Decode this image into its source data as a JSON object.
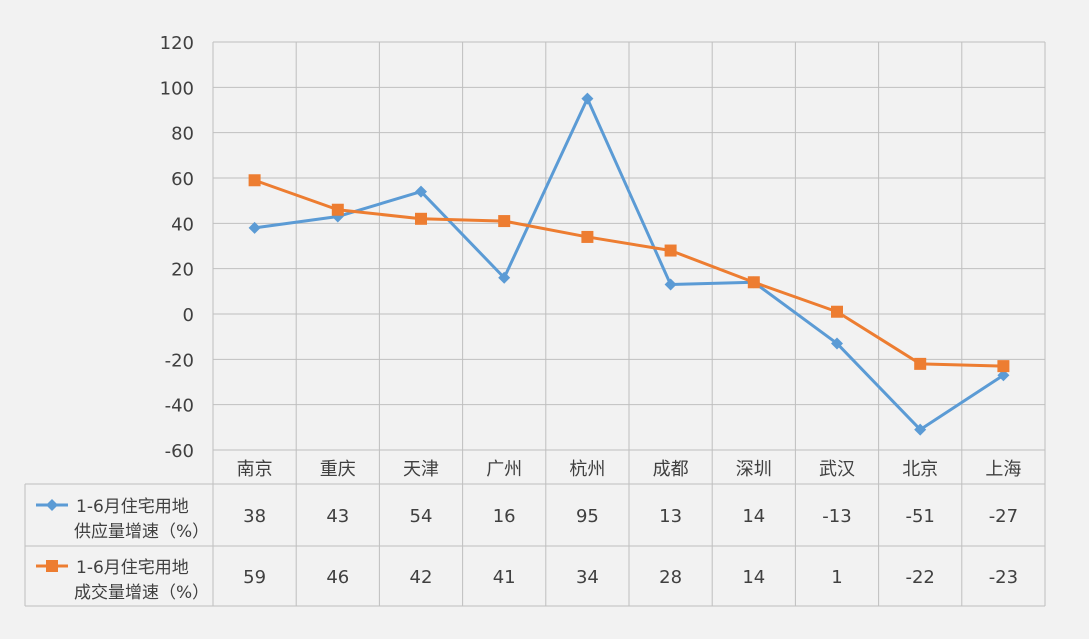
{
  "chart_data": {
    "type": "line",
    "categories": [
      "南京",
      "重庆",
      "天津",
      "广州",
      "杭州",
      "成都",
      "深圳",
      "武汉",
      "北京",
      "上海"
    ],
    "series": [
      {
        "name_lines": [
          "1-6月住宅用地",
          "供应量增速（%）"
        ],
        "color": "#5b9bd5",
        "marker": "diamond",
        "values": [
          38,
          43,
          54,
          16,
          95,
          13,
          14,
          -13,
          -51,
          -27
        ],
        "value_labels": [
          "38",
          "43",
          "54",
          "16",
          "95",
          "13",
          "14",
          "-13",
          "-51",
          "-27"
        ]
      },
      {
        "name_lines": [
          "1-6月住宅用地",
          "成交量增速（%）"
        ],
        "color": "#ed7d31",
        "marker": "square",
        "values": [
          59,
          46,
          42,
          41,
          34,
          28,
          14,
          1,
          -22,
          -23
        ],
        "value_labels": [
          "59",
          "46",
          "42",
          "41",
          "34",
          "28",
          "14",
          "1",
          "-22",
          "-23"
        ]
      }
    ],
    "ylim": [
      -60,
      120
    ],
    "yticks": [
      "-60",
      "-40",
      "-20",
      "0",
      "20",
      "40",
      "60",
      "80",
      "100",
      "120"
    ],
    "ytick_values": [
      -60,
      -40,
      -20,
      0,
      20,
      40,
      60,
      80,
      100,
      120
    ],
    "grid": true,
    "legend": "data-table"
  }
}
